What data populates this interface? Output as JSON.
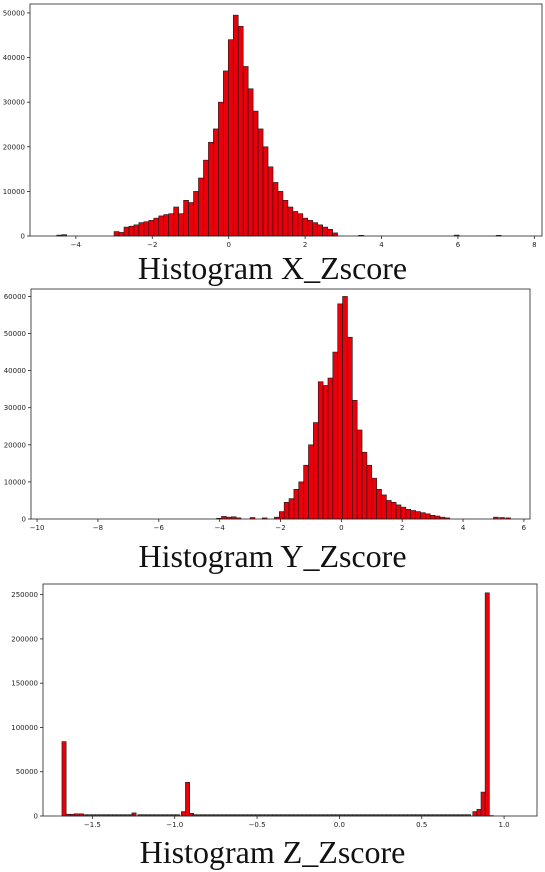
{
  "chart_data": [
    {
      "type": "bar",
      "title": "Histogram X_Zscore",
      "xlabel": "",
      "ylabel": "",
      "xlim": [
        -5.2,
        8.2
      ],
      "ylim": [
        0,
        52000
      ],
      "xticks": [
        -4,
        -2,
        0,
        2,
        4,
        6,
        8
      ],
      "yticks": [
        0,
        10000,
        20000,
        30000,
        40000,
        50000
      ],
      "grid": false,
      "bar_color": "#e8000b",
      "edge_color": "#1a1a1a",
      "bin_width": 0.13,
      "bins": [
        [
          -4.5,
          200
        ],
        [
          -4.37,
          300
        ],
        [
          -3.0,
          1000
        ],
        [
          -2.87,
          800
        ],
        [
          -2.74,
          2000
        ],
        [
          -2.61,
          2200
        ],
        [
          -2.48,
          2500
        ],
        [
          -2.35,
          3000
        ],
        [
          -2.22,
          3200
        ],
        [
          -2.09,
          3500
        ],
        [
          -1.96,
          4000
        ],
        [
          -1.83,
          4500
        ],
        [
          -1.7,
          4800
        ],
        [
          -1.57,
          5000
        ],
        [
          -1.44,
          6500
        ],
        [
          -1.31,
          5000
        ],
        [
          -1.18,
          8000
        ],
        [
          -1.05,
          7500
        ],
        [
          -0.92,
          10000
        ],
        [
          -0.79,
          13000
        ],
        [
          -0.66,
          17000
        ],
        [
          -0.53,
          21000
        ],
        [
          -0.4,
          24000
        ],
        [
          -0.27,
          30000
        ],
        [
          -0.14,
          37000
        ],
        [
          -0.01,
          44000
        ],
        [
          0.12,
          49500
        ],
        [
          0.25,
          47000
        ],
        [
          0.38,
          38000
        ],
        [
          0.51,
          33000
        ],
        [
          0.64,
          28000
        ],
        [
          0.77,
          24000
        ],
        [
          0.9,
          20000
        ],
        [
          1.03,
          15500
        ],
        [
          1.16,
          12000
        ],
        [
          1.29,
          10000
        ],
        [
          1.42,
          8000
        ],
        [
          1.55,
          6500
        ],
        [
          1.68,
          5500
        ],
        [
          1.81,
          5000
        ],
        [
          1.94,
          4000
        ],
        [
          2.07,
          3500
        ],
        [
          2.2,
          3000
        ],
        [
          2.33,
          2500
        ],
        [
          2.46,
          2000
        ],
        [
          2.59,
          1500
        ],
        [
          2.72,
          700
        ],
        [
          3.4,
          150
        ],
        [
          5.9,
          200
        ],
        [
          7.0,
          150
        ]
      ]
    },
    {
      "type": "bar",
      "title": "Histogram Y_Zscore",
      "xlabel": "",
      "ylabel": "",
      "xlim": [
        -10.2,
        6.2
      ],
      "ylim": [
        0,
        62000
      ],
      "xticks": [
        -10,
        -8,
        -6,
        -4,
        -2,
        0,
        2,
        4,
        6
      ],
      "yticks": [
        0,
        10000,
        20000,
        30000,
        40000,
        50000,
        60000
      ],
      "grid": false,
      "bar_color": "#e8000b",
      "edge_color": "#1a1a1a",
      "bin_width": 0.16,
      "bins": [
        [
          -4.1,
          200
        ],
        [
          -3.94,
          700
        ],
        [
          -3.78,
          500
        ],
        [
          -3.62,
          600
        ],
        [
          -3.46,
          300
        ],
        [
          -3.0,
          400
        ],
        [
          -2.6,
          300
        ],
        [
          -2.2,
          500
        ],
        [
          -2.04,
          2000
        ],
        [
          -1.88,
          4500
        ],
        [
          -1.72,
          5500
        ],
        [
          -1.56,
          8000
        ],
        [
          -1.4,
          10000
        ],
        [
          -1.24,
          14500
        ],
        [
          -1.08,
          20000
        ],
        [
          -0.92,
          26000
        ],
        [
          -0.76,
          37000
        ],
        [
          -0.6,
          36000
        ],
        [
          -0.44,
          38000
        ],
        [
          -0.28,
          45000
        ],
        [
          -0.12,
          58000
        ],
        [
          0.04,
          60000
        ],
        [
          0.2,
          49000
        ],
        [
          0.36,
          32000
        ],
        [
          0.52,
          24000
        ],
        [
          0.68,
          18000
        ],
        [
          0.84,
          14500
        ],
        [
          1.0,
          11000
        ],
        [
          1.16,
          8000
        ],
        [
          1.32,
          6500
        ],
        [
          1.48,
          5000
        ],
        [
          1.64,
          4500
        ],
        [
          1.8,
          3800
        ],
        [
          1.96,
          3200
        ],
        [
          2.12,
          2600
        ],
        [
          2.28,
          2300
        ],
        [
          2.44,
          2000
        ],
        [
          2.6,
          1700
        ],
        [
          2.76,
          1400
        ],
        [
          2.92,
          1000
        ],
        [
          3.08,
          800
        ],
        [
          3.24,
          500
        ],
        [
          3.4,
          300
        ],
        [
          5.0,
          500
        ],
        [
          5.2,
          400
        ],
        [
          5.4,
          300
        ]
      ]
    },
    {
      "type": "bar",
      "title": "Histogram Z_Zscore",
      "xlabel": "",
      "ylabel": "",
      "xlim": [
        -1.8,
        1.2
      ],
      "ylim": [
        0,
        262000
      ],
      "xticks": [
        "-1.5",
        "-1.0",
        "-0.5",
        "0.0",
        "0.5",
        "1.0"
      ],
      "yticks": [
        0,
        50000,
        100000,
        150000,
        200000,
        250000
      ],
      "grid": false,
      "bar_color": "#e8000b",
      "edge_color": "#1a1a1a",
      "bin_width": 0.0256,
      "bins": [
        [
          -1.685,
          84000
        ],
        [
          -1.66,
          2000
        ],
        [
          -1.635,
          2000
        ],
        [
          -1.61,
          2500
        ],
        [
          -1.58,
          2500
        ],
        [
          -1.26,
          3500
        ],
        [
          -0.96,
          5000
        ],
        [
          -0.935,
          38000
        ],
        [
          -0.91,
          3000
        ],
        [
          0.81,
          5000
        ],
        [
          0.835,
          7500
        ],
        [
          0.86,
          27000
        ],
        [
          0.885,
          252000
        ],
        [
          0.91,
          500
        ]
      ],
      "baseline_bins": {
        "from": -1.66,
        "to": 0.81,
        "value": 1500
      }
    }
  ]
}
